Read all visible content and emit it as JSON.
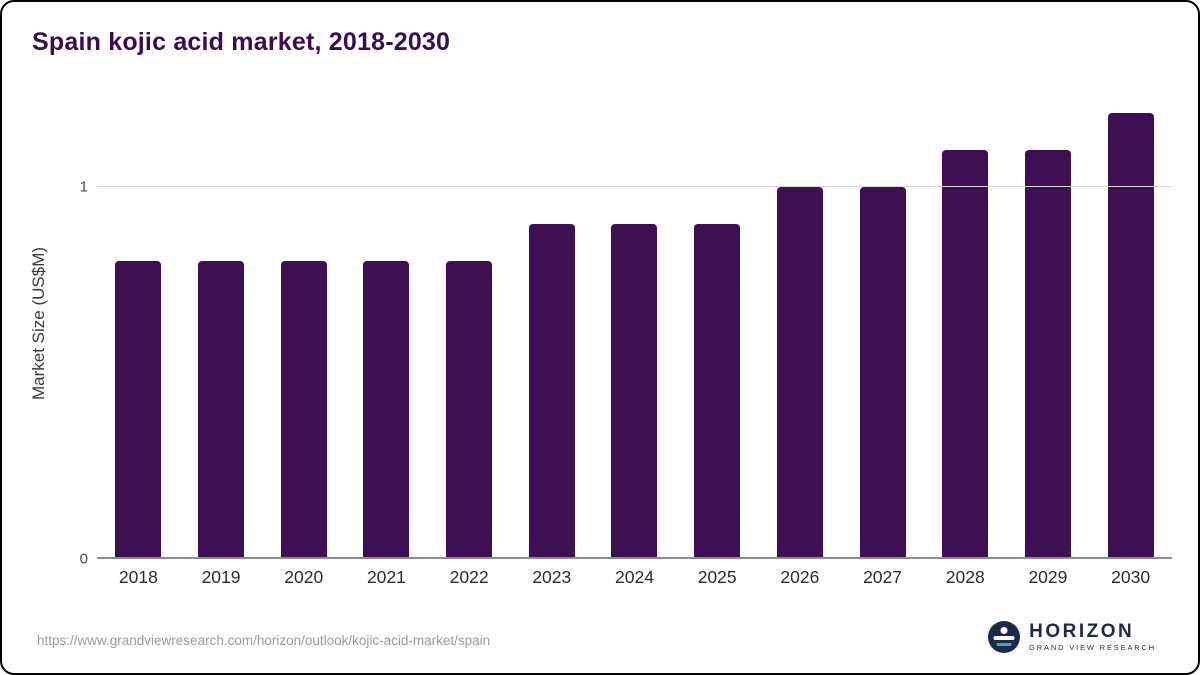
{
  "title": "Spain kojic acid market, 2018-2030",
  "chart_data": {
    "type": "bar",
    "categories": [
      "2018",
      "2019",
      "2020",
      "2021",
      "2022",
      "2023",
      "2024",
      "2025",
      "2026",
      "2027",
      "2028",
      "2029",
      "2030"
    ],
    "values": [
      0.8,
      0.8,
      0.8,
      0.8,
      0.8,
      0.9,
      0.9,
      0.9,
      1.0,
      1.0,
      1.1,
      1.1,
      1.2
    ],
    "title": "Spain kojic acid market, 2018-2030",
    "xlabel": "",
    "ylabel": "Market Size (US$M)",
    "ylim": [
      0,
      1.27
    ],
    "yticks": [
      0,
      1
    ],
    "grid": "horizontal gridline at y=1 only",
    "legend": "none",
    "bar_color": "#3E1053"
  },
  "footer": {
    "source_url": "https://www.grandviewresearch.com/horizon/outlook/kojic-acid-market/spain",
    "logo_title": "HORIZON",
    "logo_subtitle": "GRAND VIEW RESEARCH"
  },
  "colors": {
    "bar": "#3E1053",
    "title_text": "#3A0D52",
    "gridline": "#d9d9d9",
    "axis_line": "#8c8c8c",
    "logo_navy": "#1B2A4A"
  }
}
